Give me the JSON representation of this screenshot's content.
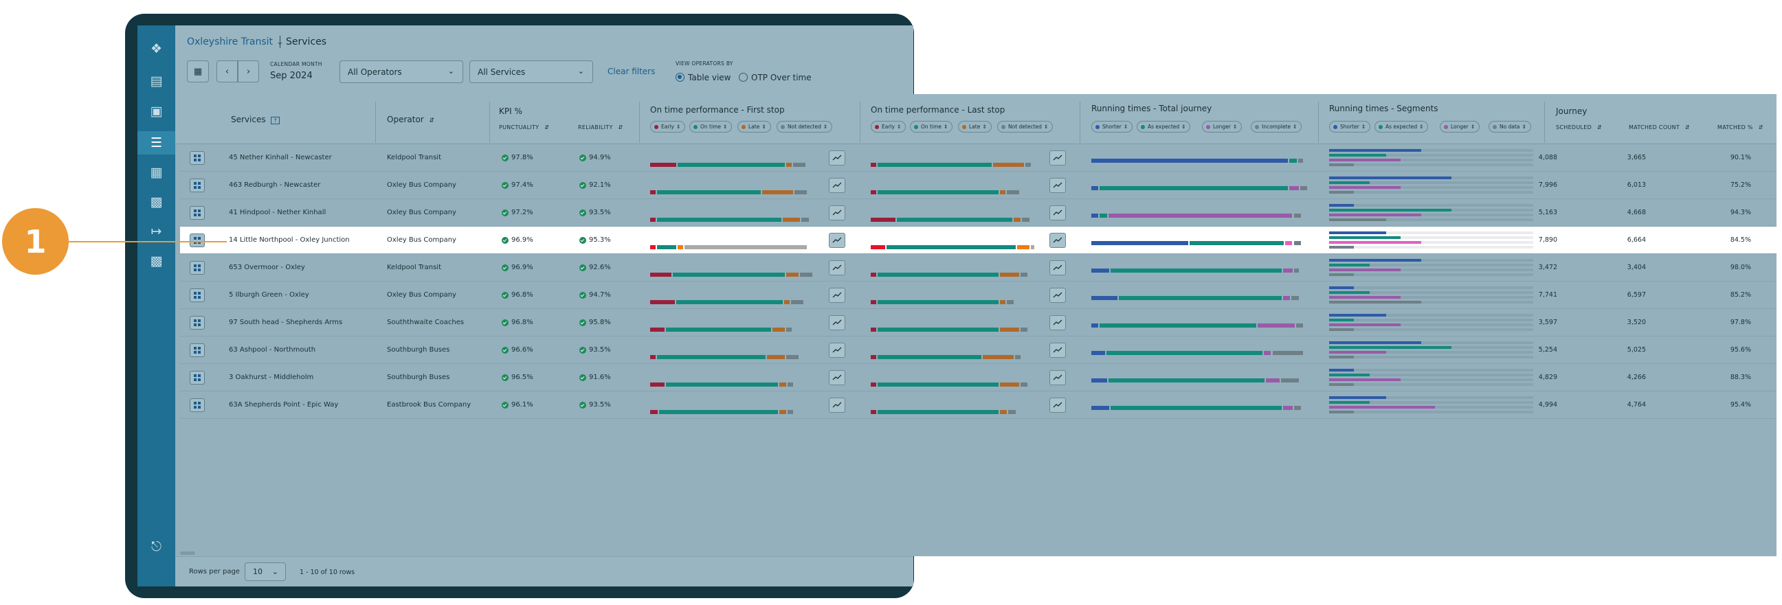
{
  "topbar": {
    "org": "Oxleyshire Transit",
    "page": "Services"
  },
  "filters": {
    "month_label": "CALENDAR MONTH",
    "month_value": "Sep 2024",
    "operators": "All Operators",
    "services": "All Services",
    "clear": "Clear filters",
    "view_label": "VIEW OPERATORS BY",
    "view_table": "Table view",
    "view_otp": "OTP Over time"
  },
  "columns": {
    "services": "Services",
    "operator": "Operator",
    "kpi": "KPI %",
    "punctuality": "PUNCTUALITY",
    "reliability": "RELIABILITY",
    "otp_first": "On time performance - First stop",
    "otp_last": "On time performance - Last stop",
    "rt_total": "Running times - Total journey",
    "rt_segments": "Running times - Segments",
    "journey": "Journey",
    "scheduled": "SCHEDULED",
    "matched_count": "MATCHED COUNT",
    "matched_pct": "MATCHED %"
  },
  "chips": {
    "otp": [
      "Early",
      "On time",
      "Late",
      "Not detected"
    ],
    "rt_total": [
      "Shorter",
      "As expected",
      "Longer",
      "Incomplete"
    ],
    "rt_segments": [
      "Shorter",
      "As expected",
      "Longer",
      "No data"
    ]
  },
  "colors": {
    "early": "#9a1f3c",
    "early_hl": "#e5132a",
    "on_time": "#138a7c",
    "late": "#b0692a",
    "late_hl": "#ef7b14",
    "not_detected": "#6f7f86",
    "not_detected_hl": "#a9a9a9",
    "shorter": "#2e5aa8",
    "as_expected": "#138a7c",
    "longer": "#9a5aa8",
    "longer_hl": "#e35fc4",
    "incomplete": "#6f7f86",
    "accent": "#1a5e8c",
    "callout": "#ec9a35"
  },
  "rows": [
    {
      "service": "45 Nether Kinhall - Newcaster",
      "operator": "Keldpool Transit",
      "punctuality": "97.8%",
      "reliability": "94.9%",
      "scheduled": "4,088",
      "matched": "3,665",
      "matched_pct": "90.1%",
      "first": [
        0.16,
        0.63,
        0.04,
        0.08
      ],
      "last": [
        0.04,
        0.67,
        0.19,
        0.04
      ],
      "total": [
        0.93,
        0.04,
        0.0,
        0.03
      ],
      "segments": [
        0.45,
        0.28,
        0.35,
        0.12
      ]
    },
    {
      "service": "463 Redburgh - Newcaster",
      "operator": "Oxley Bus Company",
      "punctuality": "97.4%",
      "reliability": "92.1%",
      "scheduled": "7,996",
      "matched": "6,013",
      "matched_pct": "75.2%",
      "first": [
        0.04,
        0.61,
        0.19,
        0.08
      ],
      "last": [
        0.04,
        0.71,
        0.04,
        0.08
      ],
      "total": [
        0.04,
        0.89,
        0.05,
        0.04
      ],
      "segments": [
        0.6,
        0.2,
        0.35,
        0.12
      ]
    },
    {
      "service": "41 Hindpool - Nether Kinhall",
      "operator": "Oxley Bus Company",
      "punctuality": "97.2%",
      "reliability": "93.5%",
      "scheduled": "5,163",
      "matched": "4,668",
      "matched_pct": "94.3%",
      "first": [
        0.04,
        0.73,
        0.11,
        0.05
      ],
      "last": [
        0.15,
        0.68,
        0.05,
        0.05
      ],
      "total": [
        0.04,
        0.04,
        0.87,
        0.04
      ],
      "segments": [
        0.12,
        0.6,
        0.45,
        0.28
      ]
    },
    {
      "service": "14 Little Northpool - Oxley Junction",
      "operator": "Oxley Bus Company",
      "punctuality": "96.9%",
      "reliability": "95.3%",
      "scheduled": "7,890",
      "matched": "6,664",
      "matched_pct": "84.5%",
      "first": [
        0.04,
        0.12,
        0.04,
        0.72
      ],
      "last": [
        0.09,
        0.76,
        0.08,
        0.03
      ],
      "total": [
        0.46,
        0.45,
        0.04,
        0.04
      ],
      "segments": [
        0.28,
        0.35,
        0.45,
        0.12
      ],
      "highlight": true
    },
    {
      "service": "653 Overmoor - Oxley",
      "operator": "Keldpool Transit",
      "punctuality": "96.9%",
      "reliability": "92.6%",
      "scheduled": "3,472",
      "matched": "3,404",
      "matched_pct": "98.0%",
      "first": [
        0.13,
        0.66,
        0.08,
        0.08
      ],
      "last": [
        0.04,
        0.71,
        0.12,
        0.05
      ],
      "total": [
        0.09,
        0.81,
        0.05,
        0.03
      ],
      "segments": [
        0.45,
        0.2,
        0.35,
        0.12
      ]
    },
    {
      "service": "5 Ilburgh Green - Oxley",
      "operator": "Oxley Bus Company",
      "punctuality": "96.8%",
      "reliability": "94.7%",
      "scheduled": "7,741",
      "matched": "6,597",
      "matched_pct": "85.2%",
      "first": [
        0.15,
        0.63,
        0.04,
        0.08
      ],
      "last": [
        0.04,
        0.71,
        0.04,
        0.05
      ],
      "total": [
        0.13,
        0.77,
        0.04,
        0.04
      ],
      "segments": [
        0.12,
        0.2,
        0.35,
        0.45
      ]
    },
    {
      "service": "97 South head - Shepherds Arms",
      "operator": "Souththwaite Coaches",
      "punctuality": "96.8%",
      "reliability": "95.8%",
      "scheduled": "3,597",
      "matched": "3,520",
      "matched_pct": "97.8%",
      "first": [
        0.09,
        0.62,
        0.08,
        0.04
      ],
      "last": [
        0.04,
        0.71,
        0.12,
        0.05
      ],
      "total": [
        0.04,
        0.74,
        0.18,
        0.04
      ],
      "segments": [
        0.28,
        0.12,
        0.35,
        0.12
      ]
    },
    {
      "service": "63 Ashpool - Northmouth",
      "operator": "Southburgh Buses",
      "punctuality": "96.6%",
      "reliability": "93.5%",
      "scheduled": "5,254",
      "matched": "5,025",
      "matched_pct": "95.6%",
      "first": [
        0.04,
        0.64,
        0.11,
        0.08
      ],
      "last": [
        0.04,
        0.61,
        0.19,
        0.04
      ],
      "total": [
        0.07,
        0.74,
        0.04,
        0.15
      ],
      "segments": [
        0.45,
        0.6,
        0.28,
        0.12
      ]
    },
    {
      "service": "3 Oakhurst - Middleholm",
      "operator": "Southburgh Buses",
      "punctuality": "96.5%",
      "reliability": "91.6%",
      "scheduled": "4,829",
      "matched": "4,266",
      "matched_pct": "88.3%",
      "first": [
        0.09,
        0.66,
        0.05,
        0.04
      ],
      "last": [
        0.04,
        0.71,
        0.12,
        0.05
      ],
      "total": [
        0.08,
        0.74,
        0.07,
        0.09
      ],
      "segments": [
        0.12,
        0.2,
        0.35,
        0.12
      ]
    },
    {
      "service": "63A Shepherds Point - Epic Way",
      "operator": "Eastbrook Bus Company",
      "punctuality": "96.1%",
      "reliability": "93.5%",
      "scheduled": "4,994",
      "matched": "4,764",
      "matched_pct": "95.4%",
      "first": [
        0.05,
        0.7,
        0.05,
        0.04
      ],
      "last": [
        0.04,
        0.71,
        0.05,
        0.05
      ],
      "total": [
        0.09,
        0.81,
        0.05,
        0.04
      ],
      "segments": [
        0.28,
        0.2,
        0.52,
        0.12
      ]
    }
  ],
  "footer": {
    "rows_label": "Rows per page",
    "rows_value": "10",
    "range": "1 - 10 of 10 rows"
  },
  "callout": {
    "number": "1"
  }
}
